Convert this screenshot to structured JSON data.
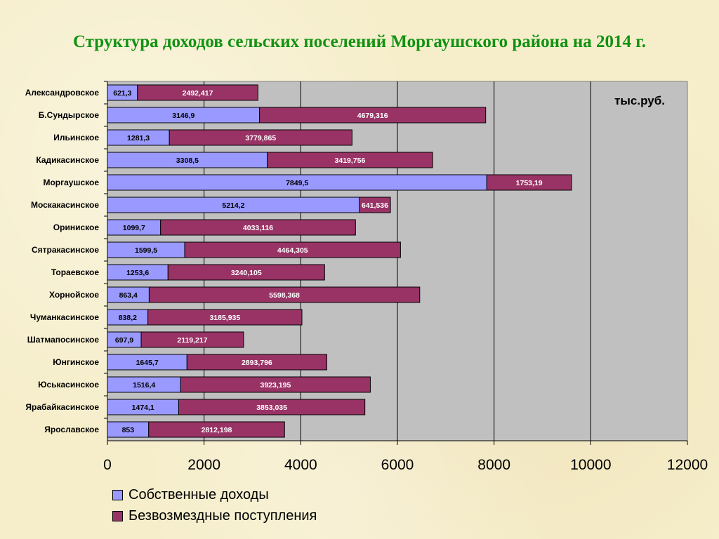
{
  "title": "Структура доходов сельских поселений Моргаушского района на 2014 г.",
  "colors": {
    "own": "#9999ff",
    "transfers": "#993366",
    "plot_bg": "#c0c0c0"
  },
  "chart_data": {
    "type": "bar",
    "orientation": "horizontal",
    "stacked": true,
    "unit_label": "тыс.руб.",
    "categories": [
      "Александровское",
      "Б.Сундырское",
      "Ильинское",
      "Кадикасинское",
      "Моргаушское",
      "Москакасинское",
      "Ориниское",
      "Сятракасинское",
      "Тораевское",
      "Хорнойское",
      "Чуманкасинское",
      "Шатмапосинское",
      "Юнгинское",
      "Юськасинское",
      "Ярабайкасинское",
      "Ярославское"
    ],
    "series": [
      {
        "name": "Собственные доходы",
        "values": [
          621.3,
          3146.9,
          1281.3,
          3308.5,
          7849.5,
          5214.2,
          1099.7,
          1599.5,
          1253.6,
          863.4,
          838.2,
          697.9,
          1645.7,
          1516.4,
          1474.1,
          853
        ],
        "labels": [
          "621,3",
          "3146,9",
          "1281,3",
          "3308,5",
          "7849,5",
          "5214,2",
          "1099,7",
          "1599,5",
          "1253,6",
          "863,4",
          "838,2",
          "697,9",
          "1645,7",
          "1516,4",
          "1474,1",
          "853"
        ]
      },
      {
        "name": "Безвозмездные поступления",
        "values": [
          2492.417,
          4679.316,
          3779.865,
          3419.756,
          1753.19,
          641.536,
          4033.116,
          4464.305,
          3240.105,
          5598.368,
          3185.935,
          2119.217,
          2893.796,
          3923.195,
          3853.035,
          2812.198
        ],
        "labels": [
          "2492,417",
          "4679,316",
          "3779,865",
          "3419,756",
          "1753,19",
          "641,536",
          "4033,116",
          "4464,305",
          "3240,105",
          "5598,368",
          "3185,935",
          "2119,217",
          "2893,796",
          "3923,195",
          "3853,035",
          "2812,198"
        ]
      }
    ],
    "xlim": [
      0,
      12000
    ],
    "xticks": [
      0,
      2000,
      4000,
      6000,
      8000,
      10000,
      12000
    ],
    "grid": true,
    "legend_position": "bottom"
  }
}
